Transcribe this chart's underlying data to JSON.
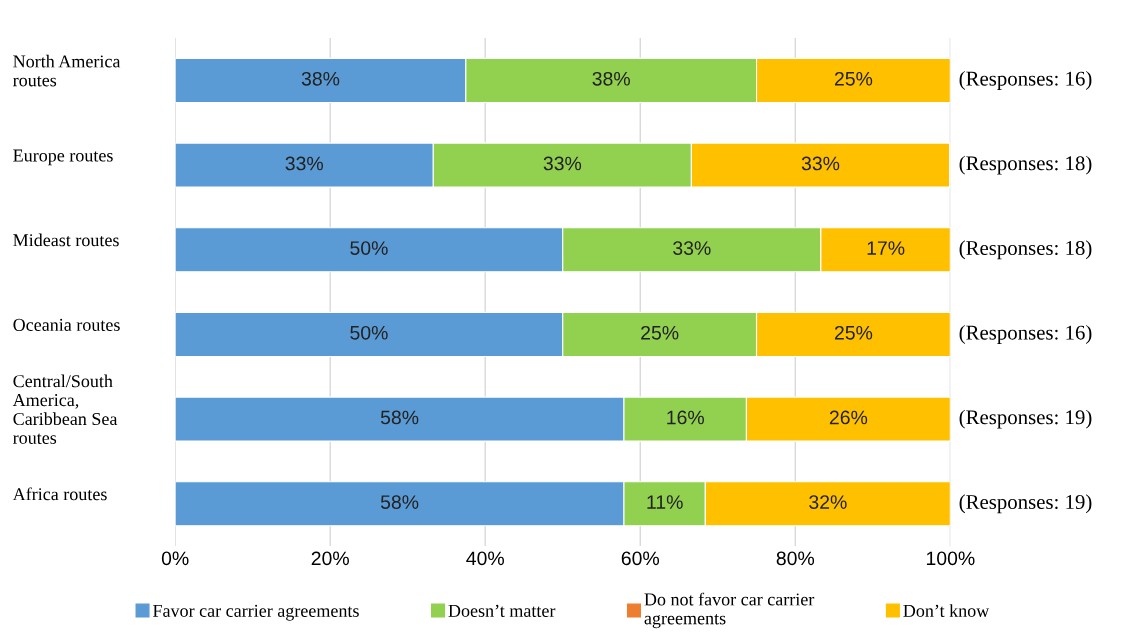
{
  "chart_data": {
    "type": "bar",
    "orientation": "horizontal",
    "stacked": true,
    "categories": [
      "North America\nroutes",
      "Europe routes",
      "Mideast routes",
      "Oceania routes",
      "Central/South\nAmerica,\nCaribbean Sea\nroutes",
      "Africa routes"
    ],
    "series": [
      {
        "name": "Favor car carrier agreements",
        "color": "#5b9bd5",
        "values": [
          37.5,
          33.3,
          50,
          50,
          57.9,
          57.9
        ],
        "value_labels": [
          "38%",
          "33%",
          "50%",
          "50%",
          "58%",
          "58%"
        ]
      },
      {
        "name": "Doesn’t matter",
        "color": "#92d050",
        "values": [
          37.5,
          33.3,
          33.3,
          25,
          15.8,
          10.5
        ],
        "value_labels": [
          "38%",
          "33%",
          "33%",
          "25%",
          "16%",
          "11%"
        ]
      },
      {
        "name": "Do not favor car carrier\nagreements",
        "color": "#ed7d31",
        "values": [
          0,
          0,
          0,
          0,
          0,
          0
        ],
        "value_labels": [
          null,
          null,
          null,
          null,
          null,
          null
        ]
      },
      {
        "name": "Don’t know",
        "color": "#ffc000",
        "values": [
          25,
          33.3,
          16.7,
          25,
          26.3,
          31.6
        ],
        "value_labels": [
          "25%",
          "33%",
          "17%",
          "25%",
          "26%",
          "32%"
        ]
      }
    ],
    "xlim": [
      0,
      100
    ],
    "xticks": [
      {
        "value": 0,
        "label": "0%"
      },
      {
        "value": 20,
        "label": "20%"
      },
      {
        "value": 40,
        "label": "40%"
      },
      {
        "value": 60,
        "label": "60%"
      },
      {
        "value": 80,
        "label": "80%"
      },
      {
        "value": 100,
        "label": "100%"
      }
    ],
    "grid": "x",
    "legend": "bottom",
    "annotations": [
      "(Responses: 16)",
      "(Responses: 18)",
      "(Responses: 18)",
      "(Responses: 16)",
      "(Responses: 19)",
      "(Responses: 19)"
    ]
  }
}
